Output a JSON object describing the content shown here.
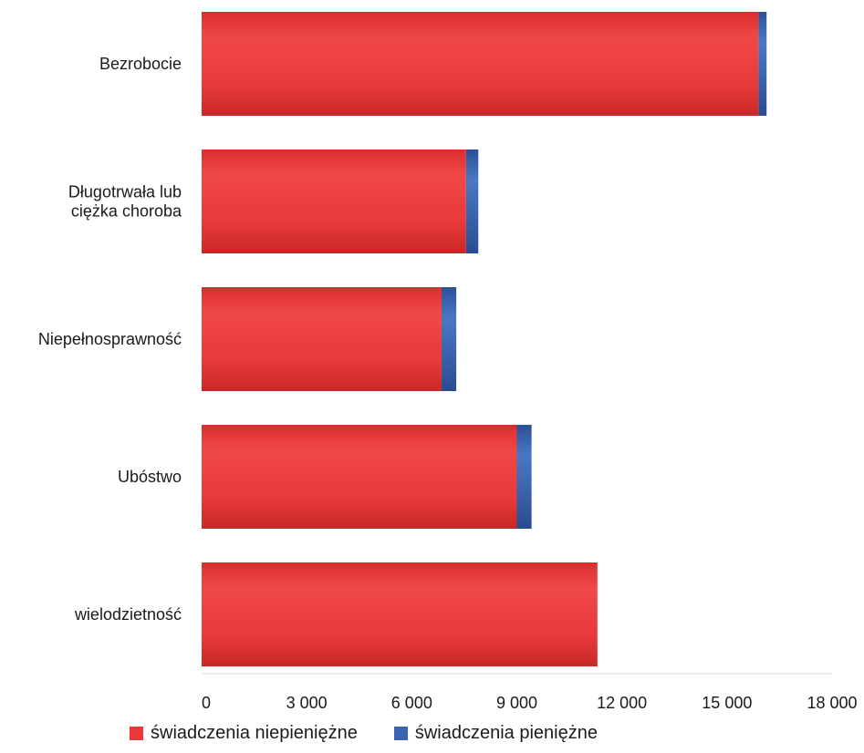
{
  "chart_data": {
    "type": "bar",
    "orientation": "horizontal",
    "stacked": true,
    "categories": [
      "Bezrobocie",
      "Długotrwała lub ciężka choroba",
      "Niepełnosprawność",
      "Ubóstwo",
      "wielodzietność"
    ],
    "category_lines": [
      [
        "Bezrobocie"
      ],
      [
        "Długotrwała lub",
        "ciężka choroba"
      ],
      [
        "Niepełnosprawność"
      ],
      [
        "Ubóstwo"
      ],
      [
        "wielodzietność"
      ]
    ],
    "series": [
      {
        "name": "świadczenia niepieniężne",
        "color": "#e83a3a",
        "values": [
          15900,
          7550,
          6850,
          9000,
          11300
        ]
      },
      {
        "name": "świadczenia pieniężne",
        "color": "#3a64b0",
        "values": [
          230,
          350,
          420,
          420,
          0
        ]
      }
    ],
    "xlim": [
      0,
      18000
    ],
    "xticks": [
      0,
      3000,
      6000,
      9000,
      12000,
      15000,
      18000
    ],
    "xtick_labels": [
      "0",
      "3 000",
      "6 000",
      "9 000",
      "12 000",
      "15 000",
      "18 000"
    ],
    "legend_position": "bottom",
    "grid": false
  }
}
